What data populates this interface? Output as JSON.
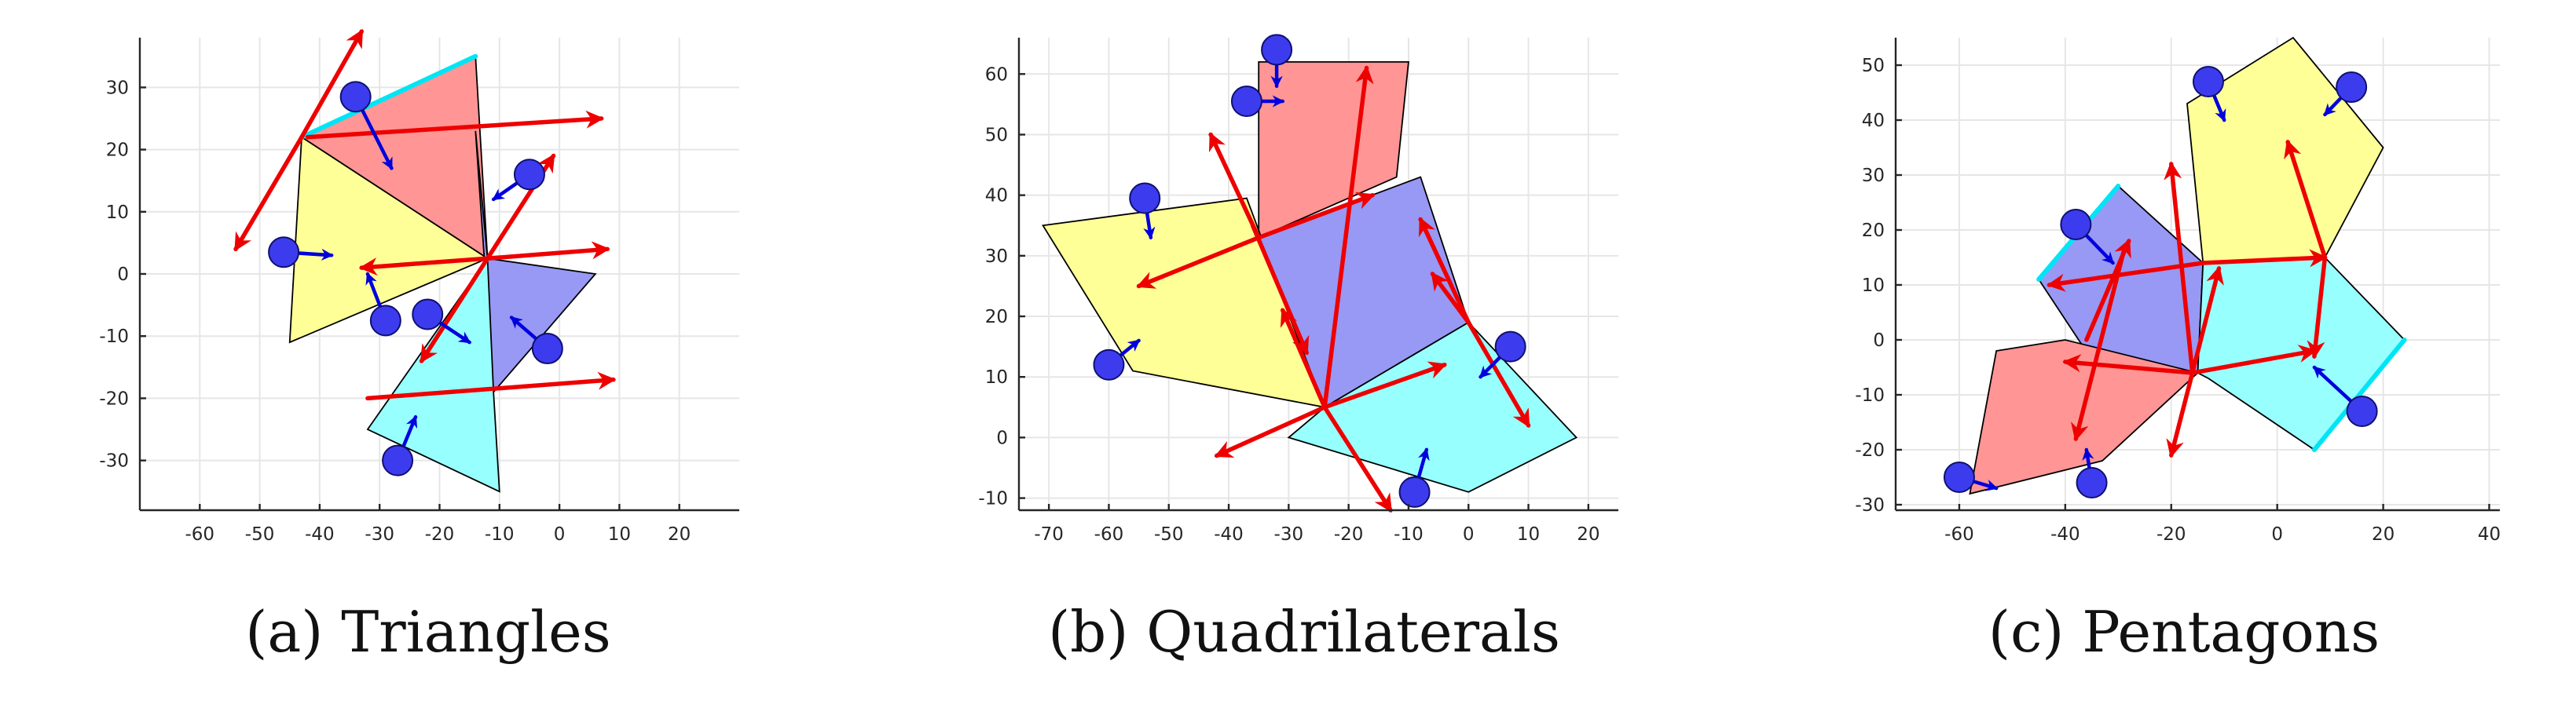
{
  "palette": {
    "red": "#ff9595",
    "blue": "#9898f5",
    "yellow": "#ffff98",
    "cyan": "#98ffff",
    "edge_cyan": "#00e5f5",
    "arrow_red": "#ee0000",
    "arrow_blue": "#0000dd",
    "agent_fill": "#3c3cee"
  },
  "chart_data": [
    {
      "type": "diagram",
      "caption": "(a) Triangles",
      "xlim": [
        -70,
        30
      ],
      "ylim": [
        -38,
        38
      ],
      "xticks": [
        -60,
        -50,
        -40,
        -30,
        -20,
        -10,
        0,
        10,
        20
      ],
      "yticks": [
        -30,
        -20,
        -10,
        0,
        10,
        20,
        30
      ],
      "grid": true,
      "polygons": [
        {
          "color": "red",
          "points": [
            [
              -43,
              22
            ],
            [
              -14,
              35
            ],
            [
              -12,
              2.5
            ]
          ]
        },
        {
          "color": "yellow",
          "points": [
            [
              -43,
              22
            ],
            [
              -12,
              2.5
            ],
            [
              -45,
              -11
            ]
          ]
        },
        {
          "color": "blue",
          "points": [
            [
              -14,
              23
            ],
            [
              -12,
              2.5
            ],
            [
              6,
              0
            ],
            [
              -11,
              -19
            ]
          ]
        },
        {
          "color": "cyan",
          "points": [
            [
              -12,
              2.5
            ],
            [
              -11,
              -19
            ],
            [
              -10,
              -35
            ],
            [
              -32,
              -25
            ]
          ]
        }
      ],
      "highlight_edges": [
        [
          [
            -43,
            22
          ],
          [
            -14,
            35
          ]
        ]
      ],
      "red_arrows": [
        [
          [
            -43,
            22
          ],
          [
            -33,
            39
          ]
        ],
        [
          [
            -43,
            22
          ],
          [
            -54,
            4
          ]
        ],
        [
          [
            -42,
            22
          ],
          [
            7,
            25
          ]
        ],
        [
          [
            -12,
            2.5
          ],
          [
            -33,
            1
          ]
        ],
        [
          [
            -12,
            2.5
          ],
          [
            8,
            4
          ]
        ],
        [
          [
            -12,
            2.5
          ],
          [
            -23,
            -14
          ]
        ],
        [
          [
            -12,
            2.5
          ],
          [
            -1,
            19
          ]
        ],
        [
          [
            -32,
            -20
          ],
          [
            9,
            -17
          ]
        ]
      ],
      "agents": [
        {
          "pos": [
            -34,
            28.5
          ],
          "dir": [
            -28,
            17
          ]
        },
        {
          "pos": [
            -5,
            16
          ],
          "dir": [
            -11,
            12
          ]
        },
        {
          "pos": [
            -46,
            3.5
          ],
          "dir": [
            -38,
            3
          ]
        },
        {
          "pos": [
            -29,
            -7.5
          ],
          "dir": [
            -32,
            0
          ]
        },
        {
          "pos": [
            -22,
            -6.5
          ],
          "dir": [
            -15,
            -11
          ]
        },
        {
          "pos": [
            -2,
            -12
          ],
          "dir": [
            -8,
            -7
          ]
        },
        {
          "pos": [
            -27,
            -30
          ],
          "dir": [
            -24,
            -23
          ]
        }
      ]
    },
    {
      "type": "diagram",
      "caption": "(b) Quadrilaterals",
      "xlim": [
        -75,
        25
      ],
      "ylim": [
        -12,
        66
      ],
      "xticks": [
        -70,
        -60,
        -50,
        -40,
        -30,
        -20,
        -10,
        0,
        10,
        20
      ],
      "yticks": [
        -10,
        0,
        10,
        20,
        30,
        40,
        50,
        60
      ],
      "grid": true,
      "polygons": [
        {
          "color": "red",
          "points": [
            [
              -35,
              62
            ],
            [
              -10,
              62
            ],
            [
              -12,
              43
            ],
            [
              -35,
              33
            ]
          ]
        },
        {
          "color": "yellow",
          "points": [
            [
              -71,
              35
            ],
            [
              -37,
              39.5
            ],
            [
              -24,
              5
            ],
            [
              -56,
              11
            ]
          ]
        },
        {
          "color": "blue",
          "points": [
            [
              -35,
              33
            ],
            [
              -8,
              43
            ],
            [
              0,
              19
            ],
            [
              -24,
              5
            ]
          ]
        },
        {
          "color": "cyan",
          "points": [
            [
              -24,
              5
            ],
            [
              0,
              19
            ],
            [
              18,
              0
            ],
            [
              0,
              -9
            ],
            [
              -30,
              0
            ]
          ]
        }
      ],
      "highlight_edges": [],
      "red_arrows": [
        [
          [
            -35,
            33
          ],
          [
            -43,
            50
          ]
        ],
        [
          [
            -35,
            33
          ],
          [
            -55,
            25
          ]
        ],
        [
          [
            -35,
            33
          ],
          [
            -16,
            40
          ]
        ],
        [
          [
            -36,
            35
          ],
          [
            -27,
            14
          ]
        ],
        [
          [
            -24,
            5
          ],
          [
            -17,
            61
          ]
        ],
        [
          [
            -24,
            5
          ],
          [
            -31,
            21
          ]
        ],
        [
          [
            -24,
            5
          ],
          [
            -42,
            -3
          ]
        ],
        [
          [
            -24,
            5
          ],
          [
            -4,
            12
          ]
        ],
        [
          [
            -24,
            5
          ],
          [
            -13,
            -12
          ]
        ],
        [
          [
            0,
            19
          ],
          [
            -8,
            36
          ]
        ],
        [
          [
            0,
            19
          ],
          [
            -6,
            27
          ]
        ],
        [
          [
            0,
            19
          ],
          [
            10,
            2
          ]
        ]
      ],
      "agents": [
        {
          "pos": [
            -32,
            64
          ],
          "dir": [
            -32,
            58
          ]
        },
        {
          "pos": [
            -37,
            55.5
          ],
          "dir": [
            -31,
            55.5
          ]
        },
        {
          "pos": [
            -54,
            39.5
          ],
          "dir": [
            -53,
            33
          ]
        },
        {
          "pos": [
            -60,
            12
          ],
          "dir": [
            -55,
            16
          ]
        },
        {
          "pos": [
            7,
            15
          ],
          "dir": [
            2,
            10
          ]
        },
        {
          "pos": [
            -9,
            -9
          ],
          "dir": [
            -7,
            -2
          ]
        }
      ]
    },
    {
      "type": "diagram",
      "caption": "(c) Pentagons",
      "xlim": [
        -72,
        42
      ],
      "ylim": [
        -31,
        55
      ],
      "xticks": [
        -60,
        -40,
        -20,
        0,
        20,
        40
      ],
      "yticks": [
        -30,
        -20,
        -10,
        0,
        10,
        20,
        30,
        40,
        50
      ],
      "grid": true,
      "polygons": [
        {
          "color": "yellow",
          "points": [
            [
              -17,
              43
            ],
            [
              3,
              55
            ],
            [
              20,
              35
            ],
            [
              9,
              15
            ],
            [
              -14,
              14
            ]
          ]
        },
        {
          "color": "blue",
          "points": [
            [
              -45,
              11
            ],
            [
              -30,
              28
            ],
            [
              -14,
              14
            ],
            [
              -15,
              -6
            ],
            [
              -32,
              -8
            ]
          ]
        },
        {
          "color": "cyan",
          "points": [
            [
              -15,
              -6
            ],
            [
              -14,
              14
            ],
            [
              9,
              15
            ],
            [
              24,
              0
            ],
            [
              7,
              -20
            ],
            [
              -13,
              -7
            ]
          ]
        },
        {
          "color": "red",
          "points": [
            [
              -53,
              -2
            ],
            [
              -40,
              0
            ],
            [
              -15,
              -6
            ],
            [
              -33,
              -22
            ],
            [
              -58,
              -28
            ]
          ]
        }
      ],
      "highlight_edges": [
        [
          [
            -45,
            11
          ],
          [
            -30,
            28
          ]
        ],
        [
          [
            24,
            0
          ],
          [
            7,
            -20
          ]
        ]
      ],
      "red_arrows": [
        [
          [
            -14,
            14
          ],
          [
            -43,
            10
          ]
        ],
        [
          [
            -14,
            14
          ],
          [
            9,
            15
          ]
        ],
        [
          [
            -16,
            -6
          ],
          [
            -20,
            32
          ]
        ],
        [
          [
            -16,
            -6
          ],
          [
            -40,
            -4
          ]
        ],
        [
          [
            -16,
            -6
          ],
          [
            7,
            -2
          ]
        ],
        [
          [
            -16,
            -6
          ],
          [
            -20,
            -21
          ]
        ],
        [
          [
            -16,
            -6
          ],
          [
            -11,
            13
          ]
        ],
        [
          [
            -29,
            16
          ],
          [
            -38,
            -18
          ]
        ],
        [
          [
            -36,
            0
          ],
          [
            -28,
            18
          ]
        ],
        [
          [
            9,
            15
          ],
          [
            2,
            36
          ]
        ],
        [
          [
            9,
            15
          ],
          [
            7,
            -3
          ]
        ]
      ],
      "agents": [
        {
          "pos": [
            -13,
            47
          ],
          "dir": [
            -10,
            40
          ]
        },
        {
          "pos": [
            14,
            46
          ],
          "dir": [
            9,
            41
          ]
        },
        {
          "pos": [
            -38,
            21
          ],
          "dir": [
            -31,
            14
          ]
        },
        {
          "pos": [
            16,
            -13
          ],
          "dir": [
            7,
            -5
          ]
        },
        {
          "pos": [
            -60,
            -25
          ],
          "dir": [
            -53,
            -27
          ]
        },
        {
          "pos": [
            -35,
            -26
          ],
          "dir": [
            -36,
            -20
          ]
        }
      ]
    }
  ]
}
